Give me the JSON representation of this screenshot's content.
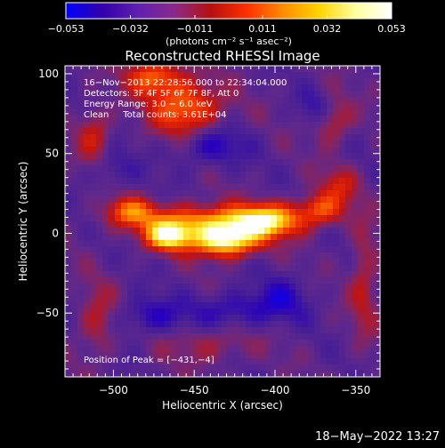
{
  "chart_data": {
    "type": "heatmap",
    "title": "Reconstructed RHESSI Image",
    "xlabel": "Heliocentric X (arcsec)",
    "ylabel": "Heliocentric Y (arcsec)",
    "xlim": [
      -530,
      -335
    ],
    "ylim": [
      -90,
      105
    ],
    "x_ticks": [
      -500,
      -450,
      -400,
      -350
    ],
    "x_tick_labels": [
      "−500",
      "−450",
      "−400",
      "−350"
    ],
    "y_ticks": [
      -50,
      0,
      50,
      100
    ],
    "y_tick_labels": [
      "−50",
      "0",
      "50",
      "100"
    ],
    "colorbar": {
      "min": -0.053,
      "max": 0.053,
      "ticks": [
        -0.053,
        -0.032,
        -0.011,
        0.011,
        0.032,
        0.053
      ],
      "tick_labels": [
        "−0.053",
        "−0.032",
        "−0.011",
        "0.011",
        "0.032",
        "0.053"
      ],
      "units": "(photons cm⁻² s⁻¹ asec⁻²)",
      "colors": [
        "#0000ff",
        "#3300aa",
        "#6020b0",
        "#8a2a8a",
        "#b51010",
        "#ff3000",
        "#ff8c00",
        "#ffd400",
        "#ffffa0",
        "#ffffff"
      ]
    },
    "annotations": [
      "16−Nov−2013 22:28:56.000 to 22:34:04.000",
      "Detectors: 3F 4F 5F 6F 7F 8F, Att 0",
      "Energy Range: 3.0 − 6.0 keV",
      "Clean     Total counts: 3.61E+04",
      "Position of Peak = [−431,−4]"
    ],
    "peak": {
      "x": -431,
      "y": -4
    },
    "grid": false
  },
  "footer": {
    "timestamp": "18−May−2022 13:27"
  }
}
